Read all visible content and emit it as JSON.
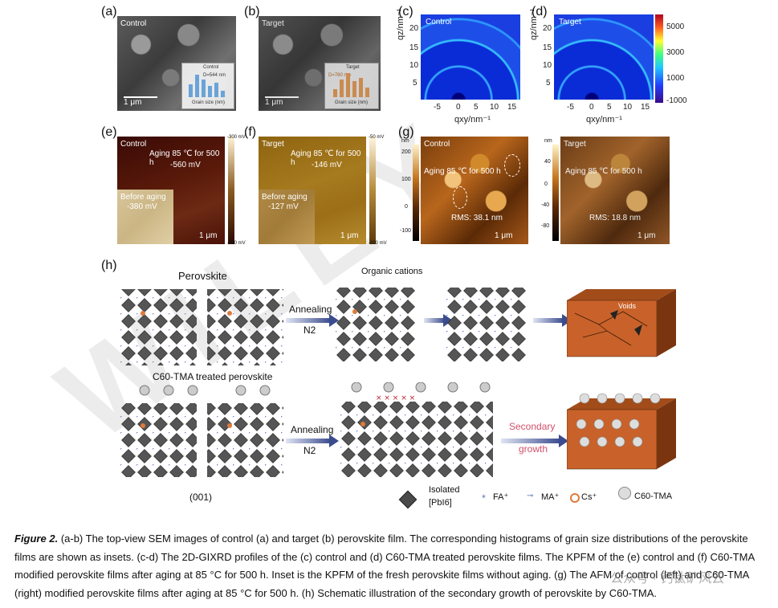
{
  "panels": {
    "a": {
      "label": "(a)",
      "name": "Control",
      "scale": "1 μm",
      "legend": "Control",
      "value": "D=544 nm",
      "xlabel": "Grain size (nm)",
      "ylabel": "Count",
      "tick": "1000"
    },
    "b": {
      "label": "(b)",
      "name": "Target",
      "scale": "1 μm",
      "legend": "Target",
      "value": "D=780 nm",
      "xlabel": "Grain size (nm)",
      "ylabel": "Count",
      "tick": "1000"
    },
    "c": {
      "label": "(c)",
      "name": "Control",
      "ylabel": "qz/nm⁻¹",
      "xlabel": "qxy/nm⁻¹",
      "yticks": [
        "20",
        "15",
        "10",
        "5"
      ],
      "xticks": [
        "-5",
        "0",
        "5",
        "10",
        "15"
      ]
    },
    "d": {
      "label": "(d)",
      "name": "Target",
      "ylabel": "qz/nm⁻¹",
      "xlabel": "qxy/nm⁻¹",
      "yticks": [
        "20",
        "15",
        "10",
        "5"
      ],
      "xticks": [
        "-5",
        "0",
        "5",
        "10",
        "15"
      ],
      "cbar": [
        "5000",
        "3000",
        "1000",
        "-1000"
      ]
    },
    "e": {
      "label": "(e)",
      "name": "Control",
      "aging": "Aging 85 ℃ for 500 h",
      "value": "-560 mV",
      "inset": "Before aging",
      "inset_value": "-380 mV",
      "scale": "1 μm",
      "cbar_top": "-300 mV",
      "cbar_bot": "-700 mV"
    },
    "f": {
      "label": "(f)",
      "name": "Target",
      "aging": "Aging 85 ℃ for 500 h",
      "value": "-146 mV",
      "inset": "Before aging",
      "inset_value": "-127 mV",
      "scale": "1 μm",
      "cbar_top": "-50 mV",
      "cbar_bot": "-300 mV"
    },
    "g": {
      "label": "(g)",
      "unit": "nm",
      "name_left": "Control",
      "name_right": "Target",
      "aging": "Aging 85 ℃ for 500 h",
      "rms_left": "RMS: 38.1 nm",
      "rms_right": "RMS: 18.8 nm",
      "scale": "1 μm",
      "cbar1": [
        "200",
        "100",
        "0",
        "-100"
      ],
      "cbar2": [
        "40",
        "0",
        "-40",
        "-80"
      ]
    },
    "h": {
      "label": "(h)",
      "perovskite": "Perovskite",
      "organic": "Organic cations",
      "annealing": "Annealing",
      "n2": "N2",
      "voids": "Voids",
      "treated": "C60-TMA treated perovskite",
      "secondary": "Secondary",
      "growth": "growth",
      "facet": "(001)",
      "legend": {
        "isolated": "Isolated",
        "pbi6": "[PbI6]",
        "fa": "FA⁺",
        "ma": "MA⁺",
        "cs": "Cs⁺",
        "c60": "C60-TMA"
      }
    }
  },
  "caption": {
    "fig": "Figure 2.",
    "text": "(a-b) The top-view SEM images of control (a) and target (b) perovskite film. The corresponding histograms of grain size distributions of the perovskite films are shown as insets. (c-d) The 2D-GIXRD profiles of the (c) control and (d) C60-TMA treated perovskite films. The KPFM of the (e) control and (f) C60-TMA modified perovskite films after aging at 85 °C for 500 h. Inset is the KPFM of the fresh perovskite films without aging. (g) The AFM of control (left) and C60-TMA (right) modified perovskite films after aging at 85 °C for 500 h. (h) Schematic illustration of the secondary growth of perovskite by C60-TMA."
  },
  "watermark": "WILEY",
  "social": "公众号 · 钙钛矿风云"
}
